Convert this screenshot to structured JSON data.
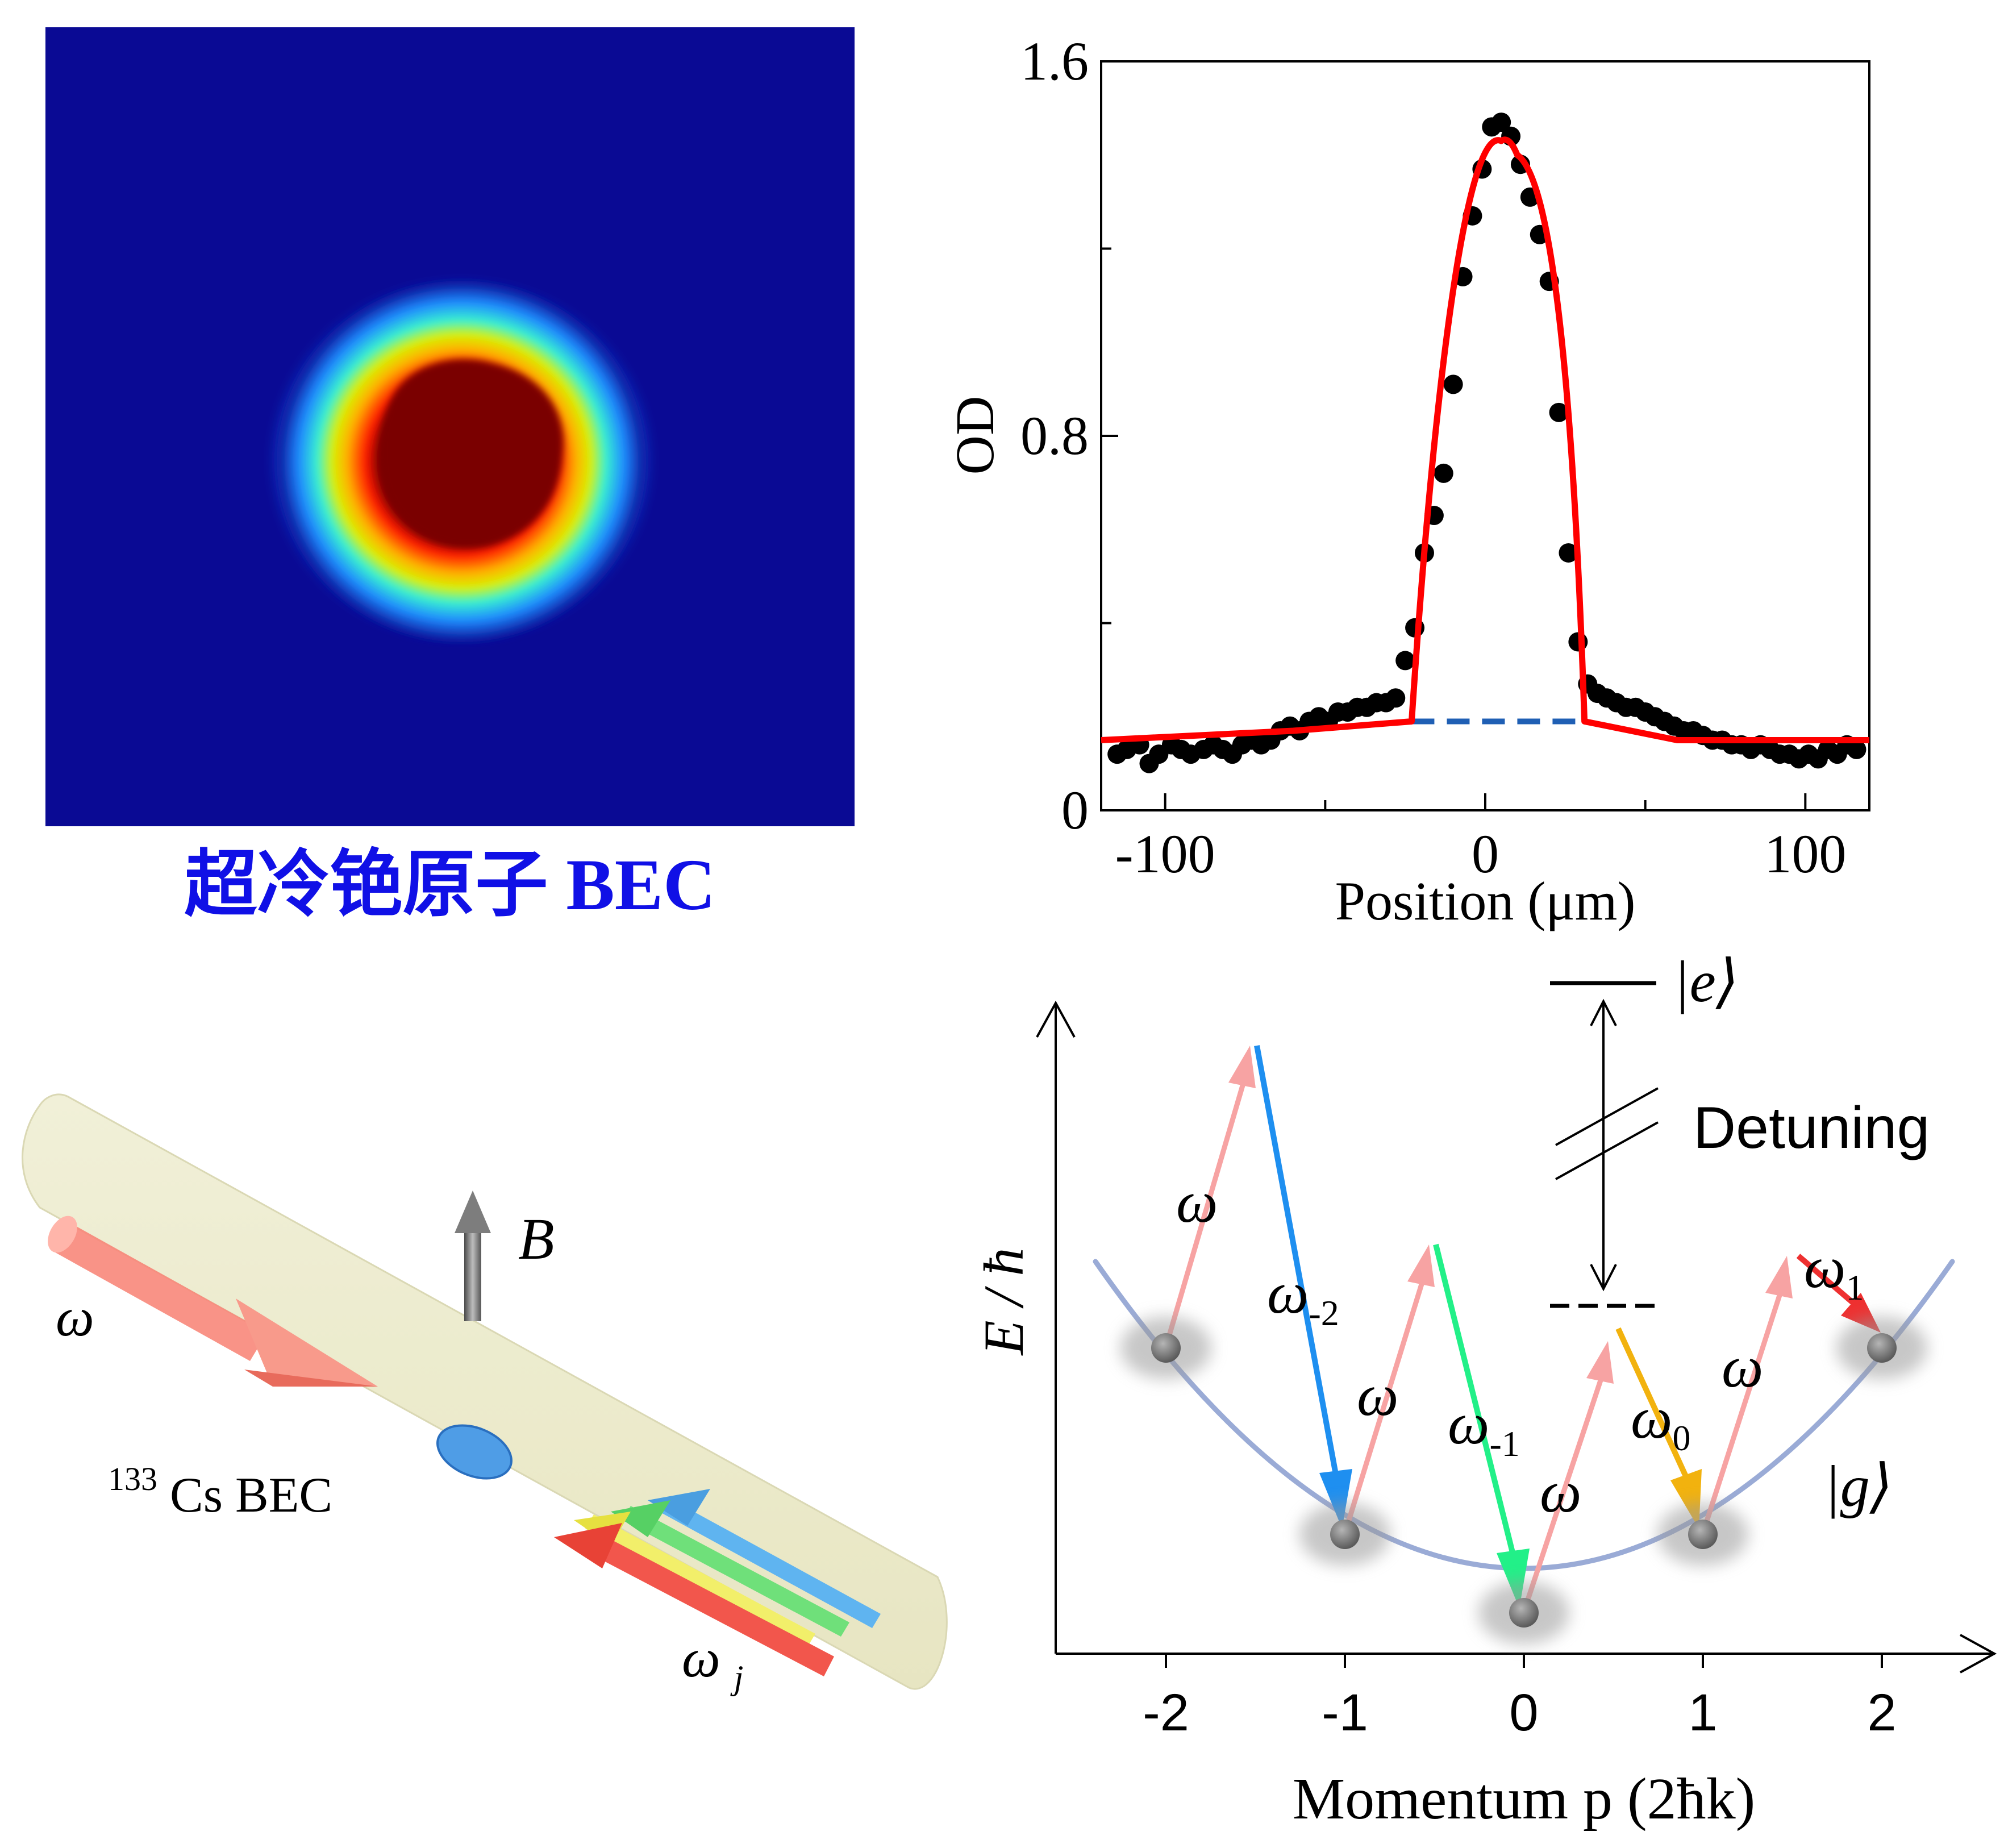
{
  "panel_a": {
    "caption": "超冷铯原子 BEC",
    "colors": {
      "background": "#0a0a94",
      "core": "#7a0000",
      "caption": "#1010e6"
    }
  },
  "chart_data": {
    "type": "scatter",
    "xlabel": "Position (μm)",
    "ylabel": "OD",
    "xlim": [
      -120,
      120
    ],
    "ylim": [
      0,
      1.6
    ],
    "x_ticks": [
      "-100",
      "0",
      "100"
    ],
    "y_ticks": [
      "0",
      "0.8",
      "1.6"
    ],
    "grid": false,
    "points": [
      [
        -115,
        0.12
      ],
      [
        -112,
        0.13
      ],
      [
        -108,
        0.14
      ],
      [
        -105,
        0.1
      ],
      [
        -102,
        0.12
      ],
      [
        -98,
        0.14
      ],
      [
        -95,
        0.13
      ],
      [
        -92,
        0.12
      ],
      [
        -88,
        0.13
      ],
      [
        -85,
        0.14
      ],
      [
        -82,
        0.13
      ],
      [
        -79,
        0.12
      ],
      [
        -76,
        0.14
      ],
      [
        -73,
        0.15
      ],
      [
        -70,
        0.14
      ],
      [
        -67,
        0.15
      ],
      [
        -64,
        0.17
      ],
      [
        -61,
        0.18
      ],
      [
        -58,
        0.17
      ],
      [
        -55,
        0.19
      ],
      [
        -52,
        0.2
      ],
      [
        -49,
        0.19
      ],
      [
        -46,
        0.21
      ],
      [
        -43,
        0.21
      ],
      [
        -40,
        0.22
      ],
      [
        -37,
        0.22
      ],
      [
        -34,
        0.23
      ],
      [
        -31,
        0.23
      ],
      [
        -28,
        0.24
      ],
      [
        -25,
        0.32
      ],
      [
        -22,
        0.39
      ],
      [
        -19,
        0.55
      ],
      [
        -16,
        0.63
      ],
      [
        -13,
        0.72
      ],
      [
        -10,
        0.91
      ],
      [
        -7,
        1.14
      ],
      [
        -4,
        1.27
      ],
      [
        -1,
        1.37
      ],
      [
        2,
        1.46
      ],
      [
        5,
        1.47
      ],
      [
        8,
        1.44
      ],
      [
        11,
        1.38
      ],
      [
        14,
        1.31
      ],
      [
        17,
        1.23
      ],
      [
        20,
        1.13
      ],
      [
        23,
        0.85
      ],
      [
        26,
        0.55
      ],
      [
        29,
        0.36
      ],
      [
        32,
        0.27
      ],
      [
        35,
        0.25
      ],
      [
        38,
        0.24
      ],
      [
        41,
        0.23
      ],
      [
        44,
        0.22
      ],
      [
        47,
        0.22
      ],
      [
        50,
        0.21
      ],
      [
        53,
        0.2
      ],
      [
        56,
        0.19
      ],
      [
        59,
        0.18
      ],
      [
        62,
        0.17
      ],
      [
        65,
        0.17
      ],
      [
        68,
        0.16
      ],
      [
        71,
        0.15
      ],
      [
        74,
        0.15
      ],
      [
        77,
        0.14
      ],
      [
        80,
        0.14
      ],
      [
        83,
        0.13
      ],
      [
        86,
        0.14
      ],
      [
        89,
        0.13
      ],
      [
        92,
        0.12
      ],
      [
        95,
        0.12
      ],
      [
        98,
        0.11
      ],
      [
        101,
        0.12
      ],
      [
        104,
        0.11
      ],
      [
        107,
        0.13
      ],
      [
        110,
        0.12
      ],
      [
        113,
        0.14
      ],
      [
        116,
        0.13
      ]
    ],
    "fit_line": [
      [
        -120,
        0.15
      ],
      [
        -60,
        0.17
      ],
      [
        -23,
        0.19
      ],
      [
        5,
        1.43
      ],
      [
        10,
        1.4
      ],
      [
        31,
        0.19
      ],
      [
        60,
        0.15
      ],
      [
        120,
        0.15
      ]
    ],
    "baseline": [
      [
        -23,
        0.19
      ],
      [
        31,
        0.19
      ]
    ],
    "colors": {
      "points": "#000000",
      "fit": "#ff0000",
      "baseline": "#1f5fb4"
    }
  },
  "panel_c": {
    "labels": {
      "omega": "ω",
      "omega_j_base": "ω",
      "omega_j_sub": "j",
      "field": "B",
      "bec_sup": "133",
      "bec_label": "Cs BEC"
    }
  },
  "panel_d": {
    "ylabel": "E / ħ",
    "xlabel": "Momentum p (2ħk)",
    "x_ticks": [
      "-2",
      "-1",
      "0",
      "1",
      "2"
    ],
    "state_e": "|e⟩",
    "state_g": "|g⟩",
    "detuning": "Detuning",
    "omega": "ω",
    "omega_labels": [
      {
        "base": "ω",
        "sub": "-2"
      },
      {
        "base": "ω",
        "sub": "-1"
      },
      {
        "base": "ω",
        "sub": "0"
      },
      {
        "base": "ω",
        "sub": "1"
      }
    ],
    "colors": {
      "parabola": "#9aabd6",
      "pump": "#f7a3a3",
      "omega_m2": "#1e8ff0",
      "omega_m1": "#22f088",
      "omega_0": "#f2b20e",
      "omega_1": "#ee3030",
      "dot": "#7a7a7a"
    }
  }
}
